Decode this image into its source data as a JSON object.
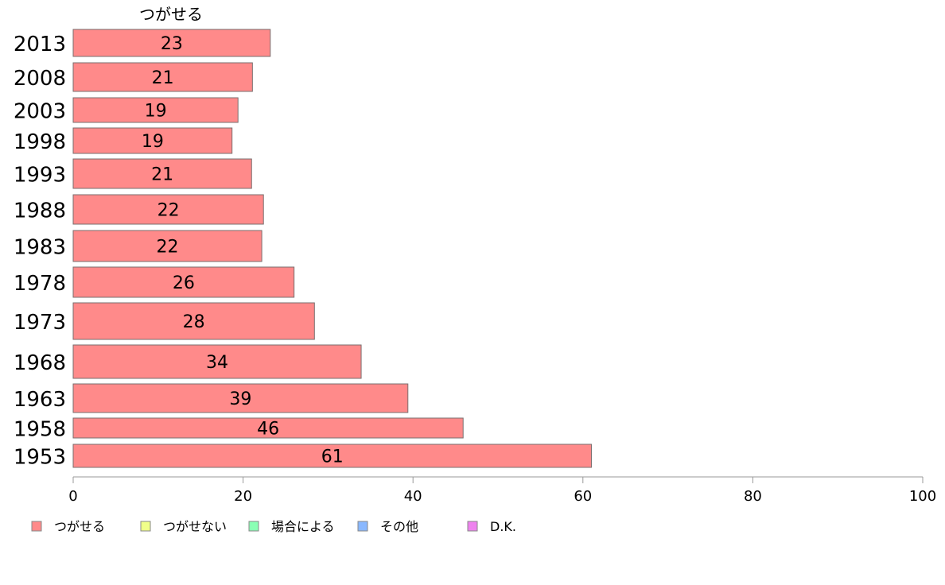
{
  "chart_data": {
    "type": "bar",
    "orientation": "horizontal",
    "categories": [
      "2013",
      "2008",
      "2003",
      "1998",
      "1993",
      "1988",
      "1983",
      "1978",
      "1973",
      "1968",
      "1963",
      "1958",
      "1953"
    ],
    "series": [
      {
        "name": "つがせる",
        "color": "#ff8a8a",
        "values": [
          23,
          21,
          19,
          19,
          21,
          22,
          22,
          26,
          28,
          34,
          39,
          46,
          61
        ],
        "bar_values": [
          23.2,
          21.1,
          19.4,
          18.7,
          21.0,
          22.4,
          22.2,
          26.0,
          28.4,
          33.9,
          39.4,
          45.9,
          61.0
        ]
      }
    ],
    "series_title": "つがせる",
    "xlim": [
      0,
      100
    ],
    "xticks": [
      "0",
      "20",
      "40",
      "60",
      "80",
      "100"
    ],
    "grid": false,
    "legend_position": "bottom-left",
    "legend": [
      {
        "label": "つがせる",
        "color": "#ff8a8a"
      },
      {
        "label": "つがせない",
        "color": "#f0ff8a"
      },
      {
        "label": "場合による",
        "color": "#8affb4"
      },
      {
        "label": "その他",
        "color": "#8ab8ff"
      },
      {
        "label": "D.K.",
        "color": "#ee82ee"
      }
    ]
  }
}
